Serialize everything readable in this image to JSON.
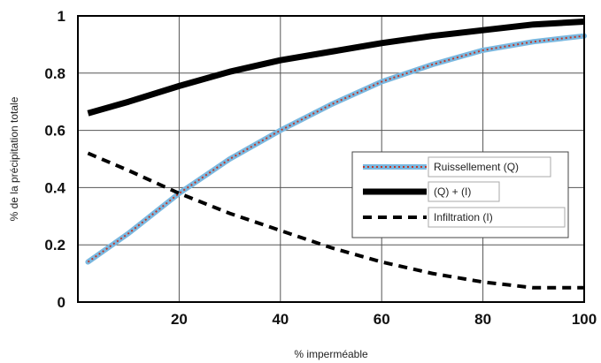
{
  "chart_data": {
    "type": "line",
    "xlabel": "% imperméable",
    "ylabel": "% de la précipitation totale",
    "xlim": [
      0,
      100
    ],
    "ylim": [
      0,
      1
    ],
    "x_ticks": [
      "20",
      "40",
      "60",
      "80",
      "100"
    ],
    "y_ticks": [
      "0",
      "0.2",
      "0.4",
      "0.6",
      "0.8",
      "1"
    ],
    "grid": true,
    "legend_position": "right",
    "series": [
      {
        "name": "Ruissellement (Q)",
        "style": "dotted-over-light-blue",
        "color": "#7ab8e0",
        "dash_color": "#c0392b",
        "x": [
          2,
          10,
          20,
          30,
          40,
          50,
          60,
          70,
          80,
          90,
          100
        ],
        "y": [
          0.14,
          0.24,
          0.38,
          0.5,
          0.6,
          0.69,
          0.77,
          0.83,
          0.88,
          0.91,
          0.93
        ]
      },
      {
        "name": "(Q) + (I)",
        "style": "thick-solid",
        "color": "#000000",
        "x": [
          2,
          10,
          20,
          30,
          40,
          50,
          60,
          70,
          80,
          90,
          100
        ],
        "y": [
          0.66,
          0.7,
          0.755,
          0.805,
          0.845,
          0.875,
          0.905,
          0.93,
          0.95,
          0.97,
          0.98
        ]
      },
      {
        "name": "Infiltration (I)",
        "style": "dashed",
        "color": "#000000",
        "x": [
          2,
          10,
          20,
          30,
          40,
          50,
          60,
          70,
          80,
          90,
          100
        ],
        "y": [
          0.52,
          0.46,
          0.38,
          0.31,
          0.25,
          0.19,
          0.14,
          0.1,
          0.07,
          0.05,
          0.05
        ]
      }
    ]
  }
}
